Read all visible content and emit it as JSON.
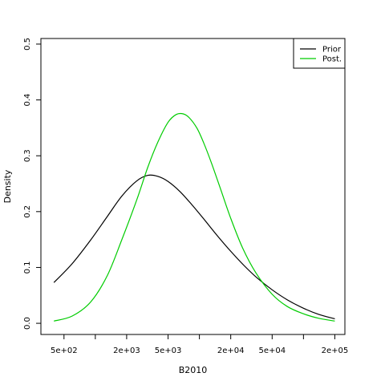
{
  "chart_data": {
    "type": "line",
    "x_scale": "log",
    "xlabel": "B2010",
    "ylabel": "Density",
    "xlim": [
      300,
      250000
    ],
    "ylim": [
      -0.02,
      0.51
    ],
    "x_ticks": [
      {
        "value": 500,
        "label": "5e+02"
      },
      {
        "value": 2000,
        "label": "2e+03"
      },
      {
        "value": 5000,
        "label": "5e+03"
      },
      {
        "value": 20000,
        "label": "2e+04"
      },
      {
        "value": 50000,
        "label": "5e+04"
      },
      {
        "value": 200000,
        "label": "2e+05"
      }
    ],
    "x_minor_ticks": [
      1000,
      10000,
      100000
    ],
    "y_ticks": [
      {
        "value": 0.0,
        "label": "0.0"
      },
      {
        "value": 0.1,
        "label": "0.1"
      },
      {
        "value": 0.2,
        "label": "0.2"
      },
      {
        "value": 0.3,
        "label": "0.3"
      },
      {
        "value": 0.4,
        "label": "0.4"
      },
      {
        "value": 0.5,
        "label": "0.5"
      }
    ],
    "legend_position": "top-right",
    "grid": false,
    "series": [
      {
        "name": "Prior",
        "color": "#000000",
        "x": [
          400,
          600,
          900,
          1300,
          1800,
          2500,
          3200,
          4000,
          5000,
          6500,
          8500,
          11000,
          15000,
          20000,
          27000,
          36000,
          50000,
          70000,
          100000,
          140000,
          200000
        ],
        "y": [
          0.073,
          0.107,
          0.149,
          0.191,
          0.228,
          0.255,
          0.265,
          0.263,
          0.254,
          0.236,
          0.212,
          0.187,
          0.156,
          0.129,
          0.103,
          0.081,
          0.06,
          0.042,
          0.027,
          0.016,
          0.008
        ]
      },
      {
        "name": "Post.",
        "color": "#00cc00",
        "x": [
          400,
          600,
          900,
          1300,
          1800,
          2500,
          3200,
          4000,
          5000,
          6000,
          7000,
          8000,
          9500,
          11000,
          13000,
          16000,
          20000,
          26000,
          35000,
          50000,
          70000,
          100000,
          140000,
          200000
        ],
        "y": [
          0.004,
          0.013,
          0.038,
          0.085,
          0.15,
          0.221,
          0.28,
          0.325,
          0.36,
          0.374,
          0.375,
          0.368,
          0.349,
          0.323,
          0.288,
          0.24,
          0.188,
          0.135,
          0.09,
          0.052,
          0.03,
          0.017,
          0.009,
          0.004
        ]
      }
    ]
  }
}
